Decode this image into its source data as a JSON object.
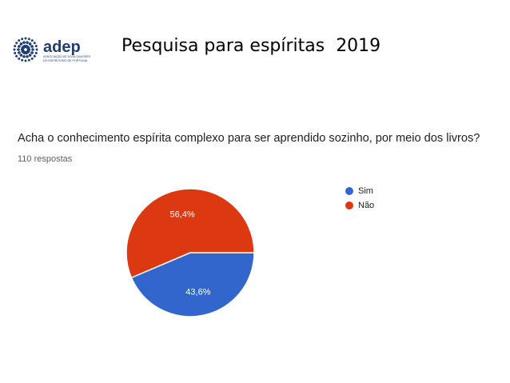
{
  "slide": {
    "title": "Pesquisa para espíritas  2019",
    "logo": {
      "name": "adep",
      "subtitle_line1": "ASSOCIAÇÃO DE DIVULGADORES",
      "subtitle_line2": "DO ESPIRITISMO DE PORTUGAL",
      "color": "#1f3f72"
    }
  },
  "chart_data": {
    "type": "pie",
    "title": "Acha o conhecimento espírita complexo para ser aprendido sozinho, por meio dos livros?",
    "subtitle": "110 respostas",
    "legend_position": "right",
    "categories": [
      "Sim",
      "Não"
    ],
    "values": [
      43.6,
      56.4
    ],
    "value_labels": [
      "43,6%",
      "56,4%"
    ],
    "colors": [
      "#3366cc",
      "#dc3912"
    ]
  }
}
